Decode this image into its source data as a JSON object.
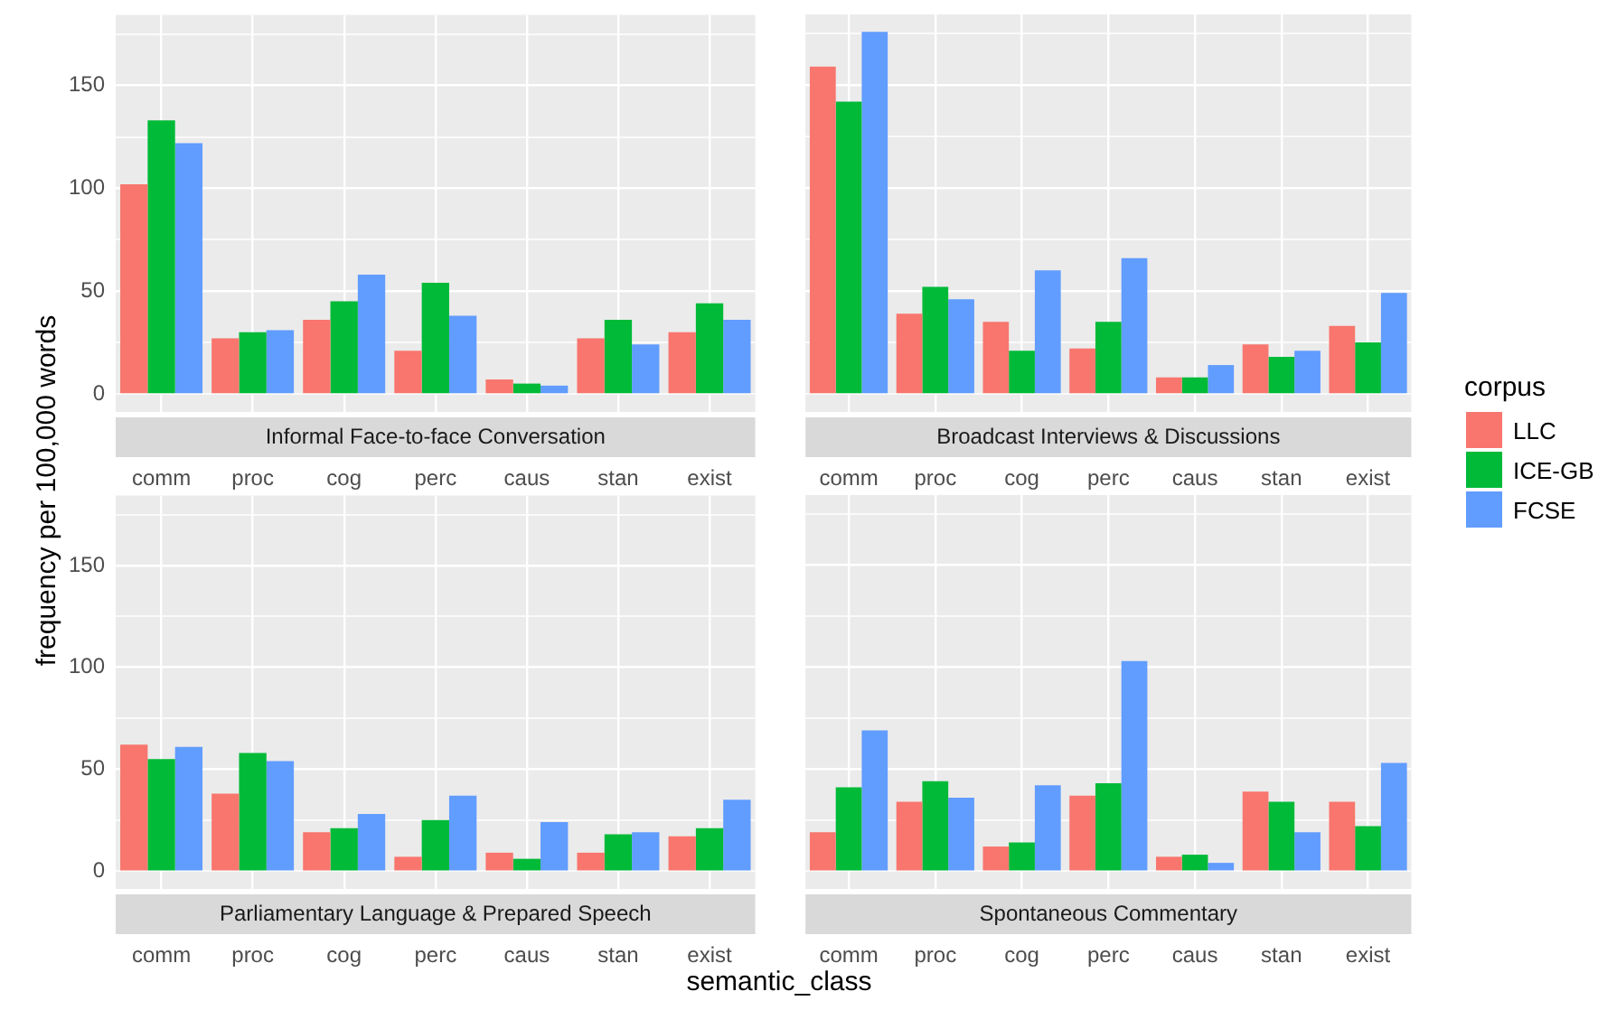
{
  "chart_data": [
    {
      "type": "bar",
      "title": "Informal Face-to-face Conversation",
      "ylabel": "frequency per 100,000 words",
      "legend": "right",
      "legend_title": "corpus",
      "categories": [
        "comm",
        "proc",
        "cog",
        "perc",
        "caus",
        "stan",
        "exist"
      ],
      "ylim": [
        -8.8,
        184.4
      ],
      "yticks": [
        0,
        {
          "value": 25,
          "label": null
        },
        50,
        {
          "value": 75,
          "label": null
        },
        100,
        {
          "value": 125,
          "label": null
        },
        150,
        {
          "value": 175,
          "label": null
        }
      ],
      "grid": true,
      "series": [
        {
          "name": "LLC",
          "color": "#f8766d",
          "values": [
            102,
            27,
            36,
            21,
            7,
            27,
            30
          ]
        },
        {
          "name": "ICE-GB",
          "color": "#00ba38",
          "values": [
            133,
            30,
            45,
            54,
            5,
            36,
            44
          ]
        },
        {
          "name": "FCSE",
          "color": "#619cff",
          "values": [
            122,
            31,
            58,
            38,
            4,
            24,
            36
          ]
        }
      ]
    },
    {
      "type": "bar",
      "title": "Broadcast Interviews & Discussions",
      "tick_labels": "x",
      "categories": [
        "comm",
        "proc",
        "cog",
        "perc",
        "caus",
        "stan",
        "exist"
      ],
      "ylim": [
        -8.8,
        184.4
      ],
      "yticks": [
        0,
        {
          "value": 25,
          "label": null
        },
        50,
        {
          "value": 75,
          "label": null
        },
        100,
        {
          "value": 125,
          "label": null
        },
        150,
        {
          "value": 175,
          "label": null
        }
      ],
      "grid": true,
      "series": [
        {
          "name": "LLC",
          "color": "#f8766d",
          "values": [
            159,
            39,
            35,
            22,
            8,
            24,
            33
          ]
        },
        {
          "name": "ICE-GB",
          "color": "#00ba38",
          "values": [
            142,
            52,
            21,
            35,
            8,
            18,
            25
          ]
        },
        {
          "name": "FCSE",
          "color": "#619cff",
          "values": [
            176,
            46,
            60,
            66,
            14,
            21,
            49
          ]
        }
      ]
    },
    {
      "type": "bar",
      "title": "Parliamentary Language & Prepared Speech",
      "categories": [
        "comm",
        "proc",
        "cog",
        "perc",
        "caus",
        "stan",
        "exist"
      ],
      "ylim": [
        -8.8,
        184.4
      ],
      "yticks": [
        0,
        {
          "value": 25,
          "label": null
        },
        50,
        {
          "value": 75,
          "label": null
        },
        100,
        {
          "value": 125,
          "label": null
        },
        150,
        {
          "value": 175,
          "label": null
        }
      ],
      "grid": true,
      "series": [
        {
          "name": "LLC",
          "color": "#f8766d",
          "values": [
            62,
            38,
            19,
            7,
            9,
            9,
            17
          ]
        },
        {
          "name": "ICE-GB",
          "color": "#00ba38",
          "values": [
            55,
            58,
            21,
            25,
            6,
            18,
            21
          ]
        },
        {
          "name": "FCSE",
          "color": "#619cff",
          "values": [
            61,
            54,
            28,
            37,
            24,
            19,
            35
          ]
        }
      ]
    },
    {
      "type": "bar",
      "title": "Spontaneous Commentary",
      "xlabel": "semantic_class",
      "tick_labels": "x",
      "categories": [
        "comm",
        "proc",
        "cog",
        "perc",
        "caus",
        "stan",
        "exist"
      ],
      "ylim": [
        -8.8,
        184.4
      ],
      "yticks": [
        0,
        {
          "value": 25,
          "label": null
        },
        50,
        {
          "value": 75,
          "label": null
        },
        100,
        {
          "value": 125,
          "label": null
        },
        150,
        {
          "value": 175,
          "label": null
        }
      ],
      "grid": true,
      "series": [
        {
          "name": "LLC",
          "color": "#f8766d",
          "values": [
            19,
            34,
            12,
            37,
            7,
            39,
            34
          ]
        },
        {
          "name": "ICE-GB",
          "color": "#00ba38",
          "values": [
            41,
            44,
            14,
            43,
            8,
            34,
            22
          ]
        },
        {
          "name": "FCSE",
          "color": "#619cff",
          "values": [
            69,
            36,
            42,
            103,
            4,
            19,
            53
          ]
        }
      ]
    }
  ]
}
